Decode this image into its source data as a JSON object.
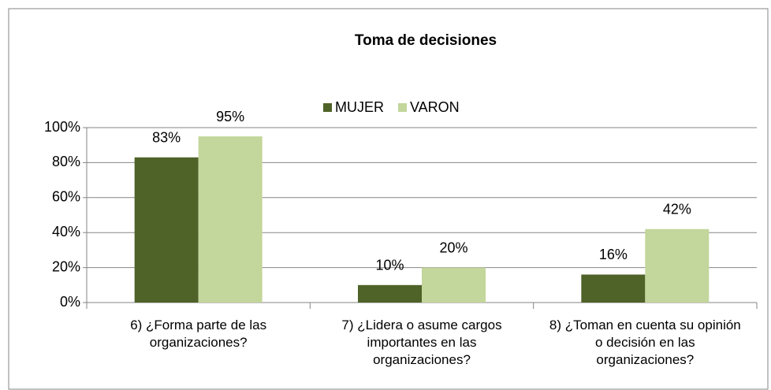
{
  "chart_data": {
    "type": "bar",
    "title": "Toma de decisiones",
    "categories": [
      "6) ¿Forma parte de las organizaciones?",
      "7) ¿Lidera o asume cargos importantes en las organizaciones?",
      "8) ¿Toman en cuenta su opinión o decisión en las organizaciones?"
    ],
    "series": [
      {
        "name": "MUJER",
        "color": "#4f6228",
        "values": [
          83,
          10,
          16
        ],
        "value_labels": [
          "83%",
          "10%",
          "16%"
        ]
      },
      {
        "name": "VARON",
        "color": "#c3d69b",
        "values": [
          95,
          20,
          42
        ],
        "value_labels": [
          "95%",
          "20%",
          "42%"
        ]
      }
    ],
    "ylim": [
      0,
      100
    ],
    "yticks": [
      {
        "value": 0,
        "label": "0%"
      },
      {
        "value": 20,
        "label": "20%"
      },
      {
        "value": 40,
        "label": "40%"
      },
      {
        "value": 60,
        "label": "60%"
      },
      {
        "value": 80,
        "label": "80%"
      },
      {
        "value": 100,
        "label": "100%"
      }
    ],
    "grid": true,
    "legend": "top"
  }
}
